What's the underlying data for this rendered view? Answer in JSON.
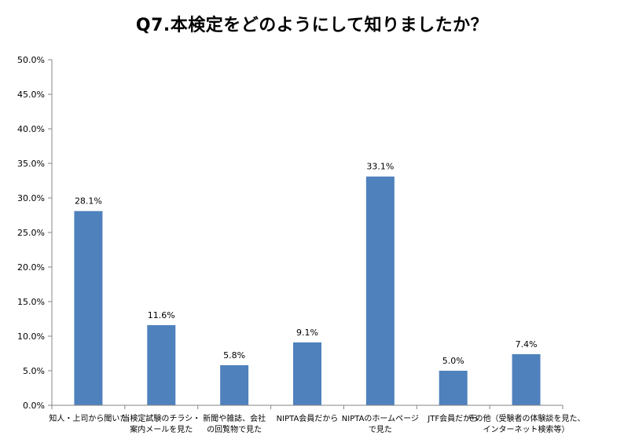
{
  "chart_data": {
    "type": "bar",
    "title": "Q7.本検定をどのようにして知りましたか？",
    "xlabel": "",
    "ylabel": "",
    "ylim": [
      0,
      50
    ],
    "grid": false,
    "categories": [
      "知人・上司から聞いた",
      "当検定試験のチラシ・案内メールを見た",
      "新聞や雑誌、会社の回覧物で見た",
      "NIPTA会員だから",
      "NIPTAのホームページで見た",
      "JTF会員だから",
      "その他（受験者の体験談を見た、インターネット検索等）"
    ],
    "category_lines": [
      [
        "知人・上司から聞いた"
      ],
      [
        "当検定試験のチラシ・",
        "案内メールを見た"
      ],
      [
        "新聞や雑誌、会社",
        "の回覧物で見た"
      ],
      [
        "NIPTA会員だから"
      ],
      [
        "NIPTAのホームページ",
        "で見た"
      ],
      [
        "JTF会員だから"
      ],
      [
        "その他（受験者の体験談を見た、",
        "インターネット検索等）"
      ]
    ],
    "values": [
      28.1,
      11.6,
      5.8,
      9.1,
      33.1,
      5.0,
      7.4
    ],
    "data_labels": [
      "28.1%",
      "11.6%",
      "5.8%",
      "9.1%",
      "33.1%",
      "5.0%",
      "7.4%"
    ],
    "yticks": [
      0,
      5,
      10,
      15,
      20,
      25,
      30,
      35,
      40,
      45,
      50
    ],
    "ytick_labels": [
      "0.0%",
      "5.0%",
      "10.0%",
      "15.0%",
      "20.0%",
      "25.0%",
      "30.0%",
      "35.0%",
      "40.0%",
      "45.0%",
      "50.0%"
    ],
    "bar_color": "#4F81BD"
  }
}
